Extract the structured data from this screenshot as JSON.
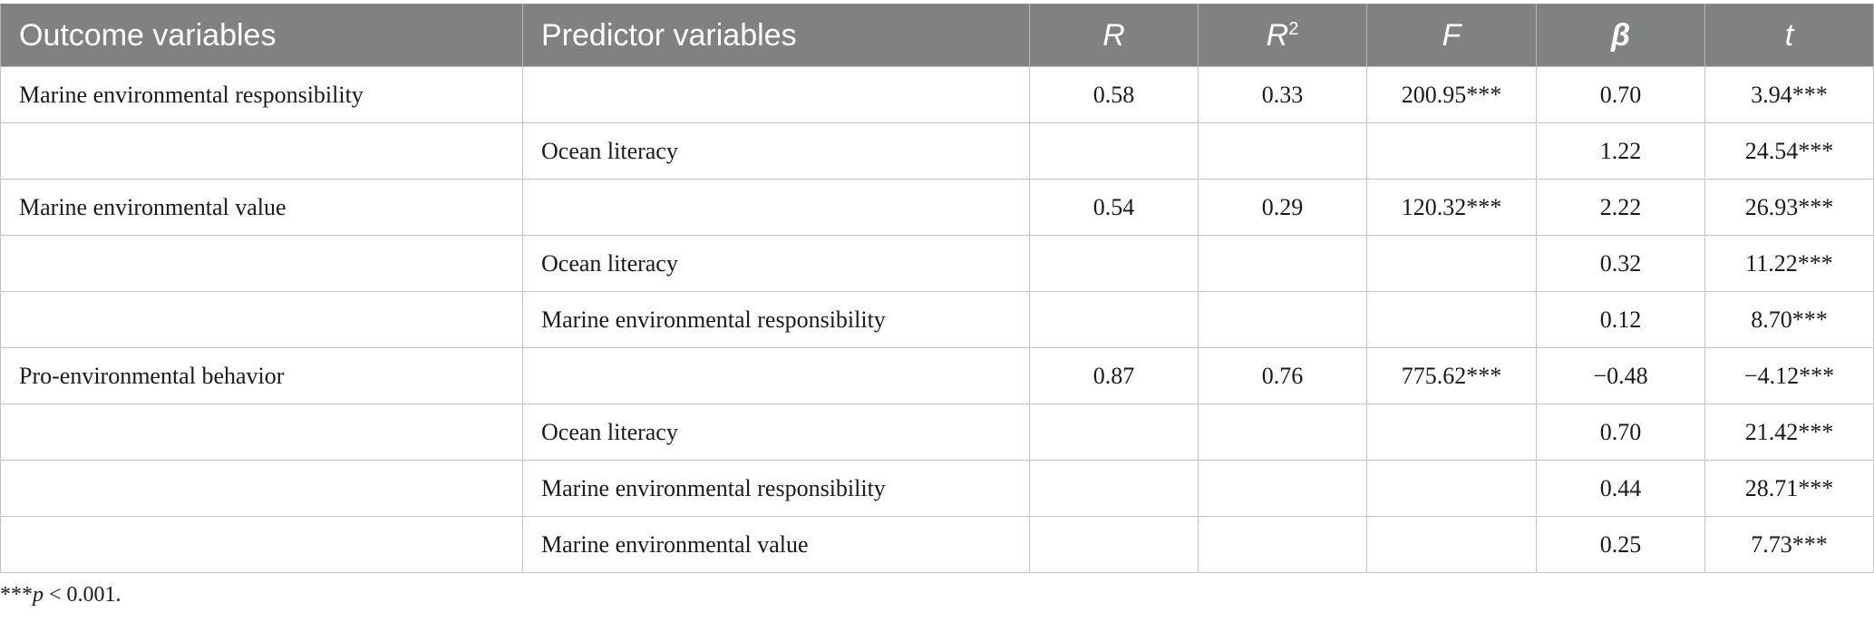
{
  "table": {
    "headers": [
      "Outcome variables",
      "Predictor variables",
      "R",
      "R",
      "F",
      "β",
      "t"
    ],
    "header_r2_sup": "2",
    "rows": [
      [
        "Marine environmental responsibility",
        "",
        "0.58",
        "0.33",
        "200.95***",
        "0.70",
        "3.94***"
      ],
      [
        "",
        "Ocean literacy",
        "",
        "",
        "",
        "1.22",
        "24.54***"
      ],
      [
        "Marine environmental value",
        "",
        "0.54",
        "0.29",
        "120.32***",
        "2.22",
        "26.93***"
      ],
      [
        "",
        "Ocean literacy",
        "",
        "",
        "",
        "0.32",
        "11.22***"
      ],
      [
        "",
        "Marine environmental responsibility",
        "",
        "",
        "",
        "0.12",
        "8.70***"
      ],
      [
        "Pro-environmental behavior",
        "",
        "0.87",
        "0.76",
        "775.62***",
        "−0.48",
        "−4.12***"
      ],
      [
        "",
        "Ocean literacy",
        "",
        "",
        "",
        "0.70",
        "21.42***"
      ],
      [
        "",
        "Marine environmental responsibility",
        "",
        "",
        "",
        "0.44",
        "28.71***"
      ],
      [
        "",
        "Marine environmental value",
        "",
        "",
        "",
        "0.25",
        "7.73***"
      ]
    ]
  },
  "footnote": {
    "stars": "***",
    "p": "p",
    "rest": " < 0.001."
  },
  "colors": {
    "header_bg": "#7f8280",
    "header_text": "#ffffff",
    "grid": "#c4c4c4"
  }
}
